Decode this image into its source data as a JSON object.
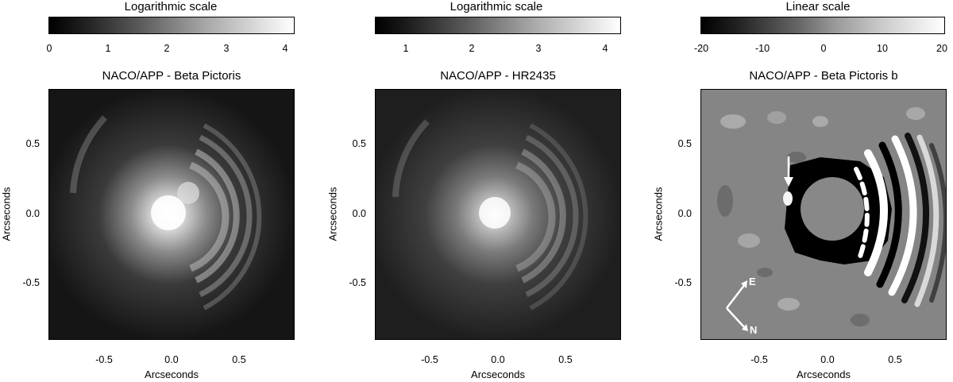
{
  "panels": [
    {
      "colorbar_title": "Logarithmic scale",
      "colorbar_ticks": [
        "0",
        "1",
        "2",
        "3",
        "4"
      ],
      "title": "NACO/APP - Beta Pictoris",
      "ylabel": "Arcseconds",
      "xlabel": "Arcseconds",
      "yticks": [
        "0.5",
        "0.0",
        "-0.5"
      ],
      "xticks": [
        "-0.5",
        "0.0",
        "0.5"
      ]
    },
    {
      "colorbar_title": "Logarithmic scale",
      "colorbar_ticks": [
        "1",
        "2",
        "3",
        "4"
      ],
      "title": "NACO/APP - HR2435",
      "ylabel": "Arcseconds",
      "xlabel": "Arcseconds",
      "yticks": [
        "0.5",
        "0.0",
        "-0.5"
      ],
      "xticks": [
        "-0.5",
        "0.0",
        "0.5"
      ]
    },
    {
      "colorbar_title": "Linear scale",
      "colorbar_ticks": [
        "-20",
        "-10",
        "0",
        "10",
        "20"
      ],
      "title": "NACO/APP - Beta Pictoris b",
      "ylabel": "Arcseconds",
      "xlabel": "Arcseconds",
      "yticks": [
        "0.5",
        "0.0",
        "-0.5"
      ],
      "xticks": [
        "-0.5",
        "0.0",
        "0.5"
      ],
      "compass": {
        "east": "E",
        "north": "N"
      }
    }
  ]
}
